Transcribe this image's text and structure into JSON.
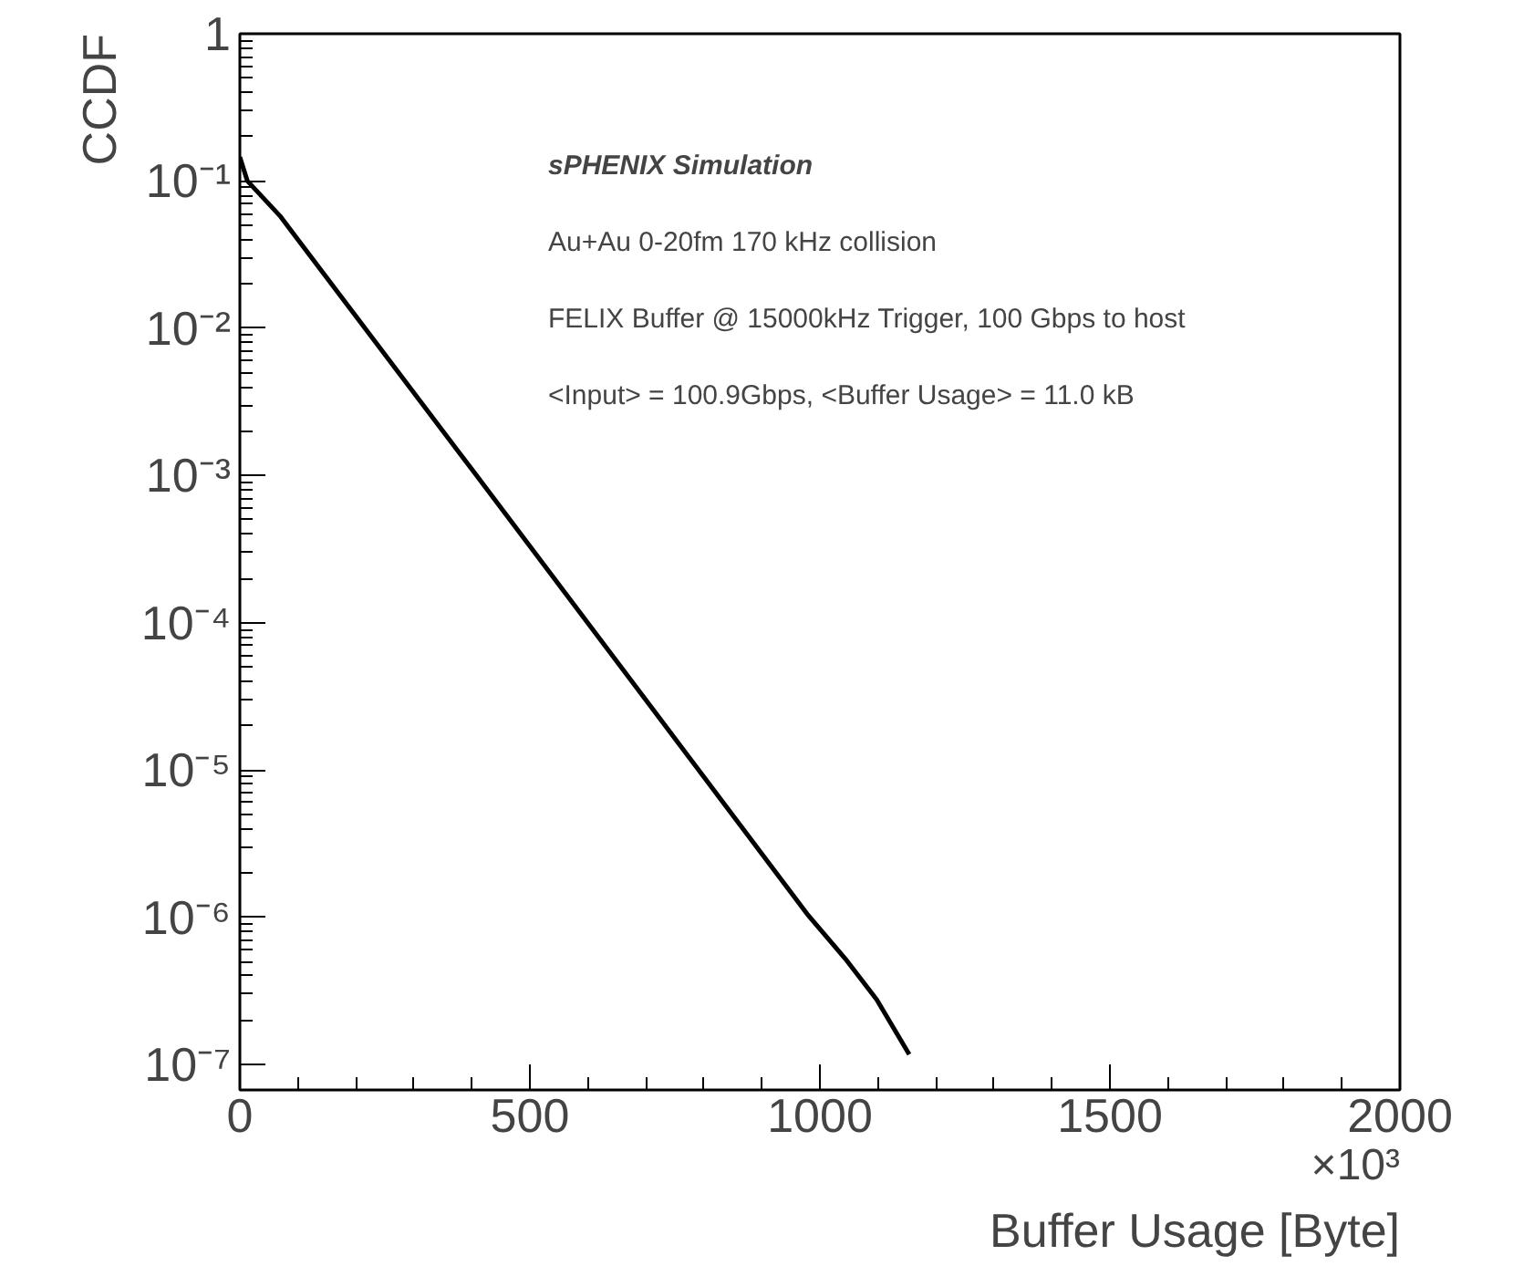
{
  "chart_data": {
    "type": "line",
    "xlabel": "Buffer Usage [Byte]",
    "ylabel": "CCDF",
    "x": [
      0,
      13,
      69,
      400,
      783,
      978,
      1044,
      1098,
      1154
    ],
    "series": [
      {
        "color": "#000000",
        "values": [
          0.145,
          0.1,
          0.058,
          0.0011,
          1.1e-05,
          1.05e-06,
          5.2e-07,
          2.75e-07,
          1.17e-07
        ]
      }
    ],
    "log": "y",
    "grid": false,
    "marker": "none",
    "line_style": "solid",
    "xlim": [
      0,
      2000
    ],
    "xticks": [
      0,
      500,
      1000,
      1500,
      2000
    ],
    "ylim": [
      6.7e-08,
      1
    ],
    "yticks": [
      {
        "value": 1e-07,
        "label": "10⁻⁷"
      },
      {
        "value": 1e-06,
        "label": "10⁻⁶"
      },
      {
        "value": 1e-05,
        "label": "10⁻⁵"
      },
      {
        "value": 0.0001,
        "label": "10⁻⁴"
      },
      {
        "value": 0.001,
        "label": "10⁻³"
      },
      {
        "value": 0.01,
        "label": "10⁻²"
      },
      {
        "value": 0.1,
        "label": "10⁻¹"
      },
      {
        "value": 1,
        "label": "1"
      }
    ],
    "annotations": [
      "sPHENIX Simulation",
      "Au+Au 0-20fm 170 kHz collision",
      "FELIX Buffer @ 15000kHz Trigger, 100 Gbps to host",
      "<Input> = 100.9Gbps, <Buffer Usage> = 11.0 kB",
      "×10³"
    ]
  }
}
